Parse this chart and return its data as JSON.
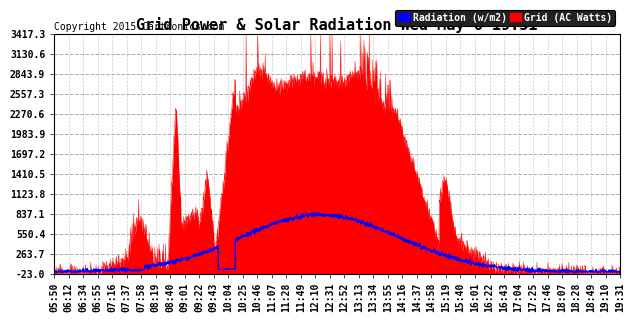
{
  "title": "Grid Power & Solar Radiation Wed May 6 19:51",
  "copyright": "Copyright 2015 Cartronics.com",
  "legend_labels": [
    "Radiation (w/m2)",
    "Grid (AC Watts)"
  ],
  "yticks": [
    3417.3,
    3130.6,
    2843.9,
    2557.3,
    2270.6,
    1983.9,
    1697.2,
    1410.5,
    1123.8,
    837.1,
    550.4,
    263.7,
    -23.0
  ],
  "xtick_labels": [
    "05:50",
    "06:12",
    "06:34",
    "06:55",
    "07:16",
    "07:37",
    "07:58",
    "08:19",
    "08:40",
    "09:01",
    "09:22",
    "09:43",
    "10:04",
    "10:25",
    "10:46",
    "11:07",
    "11:28",
    "11:49",
    "12:10",
    "12:31",
    "12:52",
    "13:13",
    "13:34",
    "13:55",
    "14:16",
    "14:37",
    "14:58",
    "15:19",
    "15:40",
    "16:01",
    "16:22",
    "16:43",
    "17:04",
    "17:25",
    "17:46",
    "18:07",
    "18:28",
    "18:49",
    "19:10",
    "19:31"
  ],
  "ymin": -23.0,
  "ymax": 3417.3,
  "grid_color": "#aaaaaa",
  "bg_color": "#ffffff",
  "plot_bg_color": "#ffffff",
  "radiation_color": "blue",
  "grid_power_color": "red",
  "title_fontsize": 11,
  "tick_fontsize": 7,
  "copyright_fontsize": 7
}
